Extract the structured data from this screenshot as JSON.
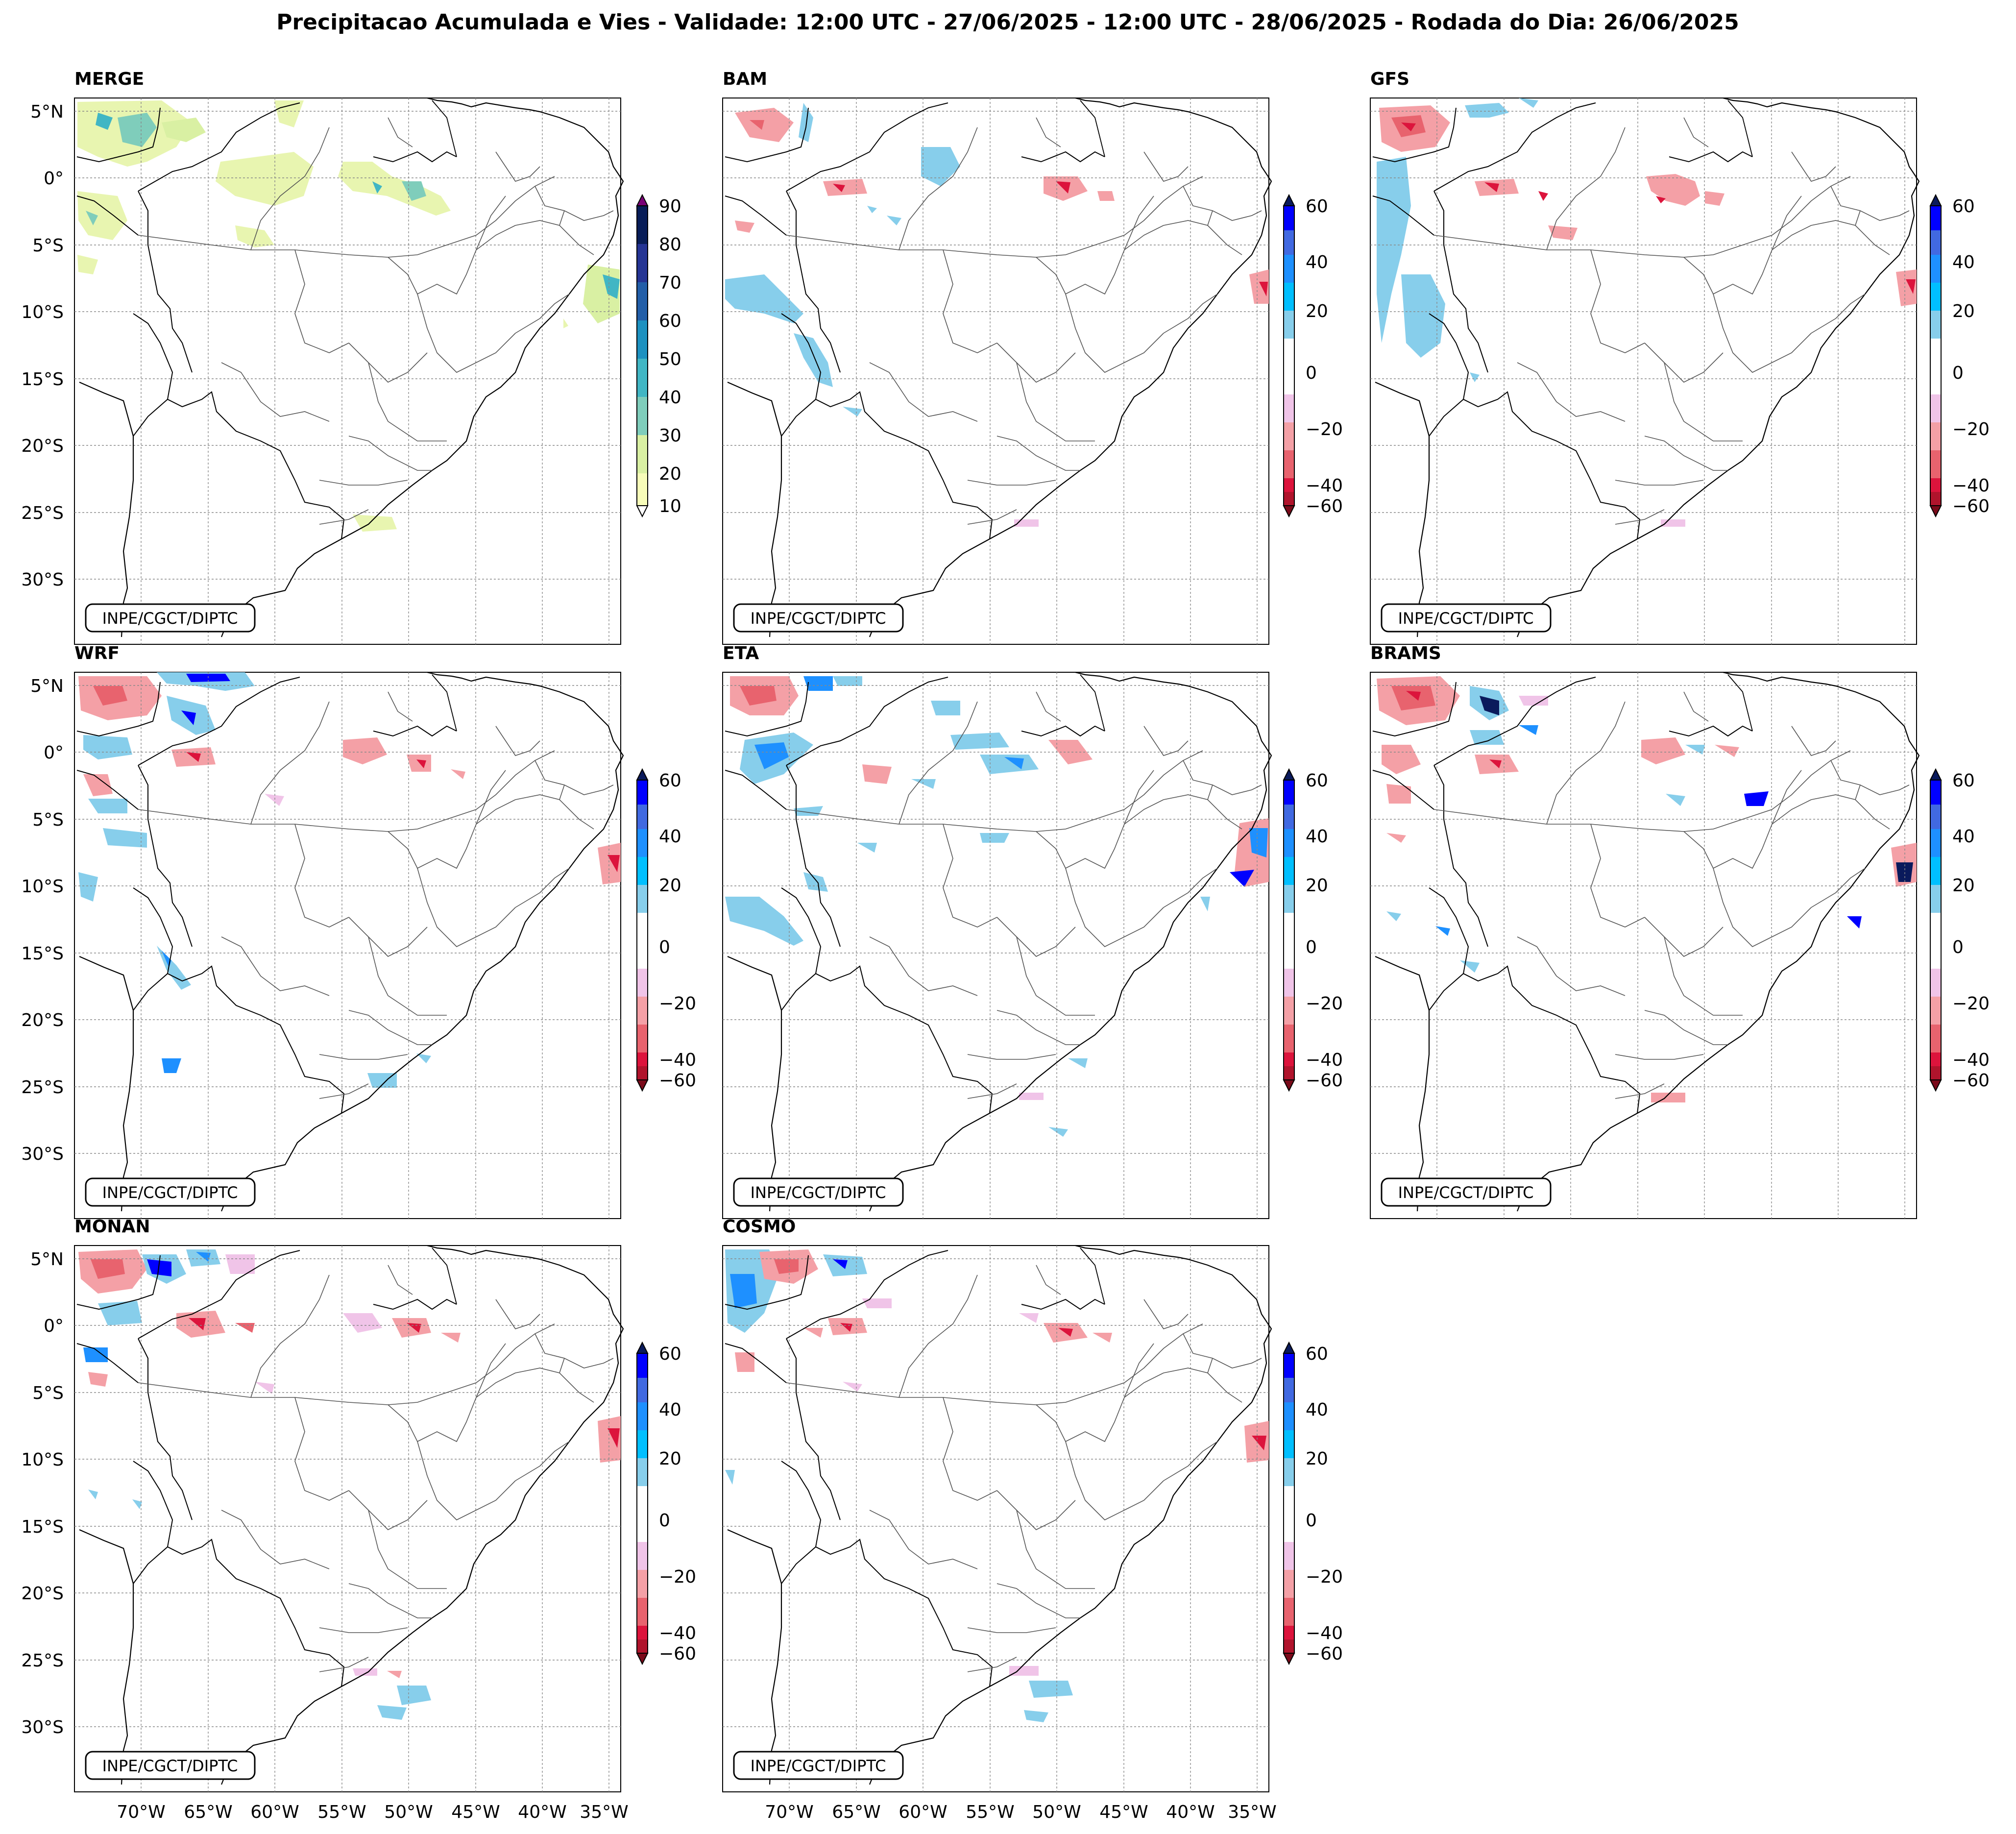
{
  "figure": {
    "title": "Precipitacao Acumulada e Vies - Validade: 12:00 UTC - 27/06/2025 - 12:00 UTC - 28/06/2025 - Rodada do Dia: 26/06/2025"
  },
  "credit": "INPE/CGCT/DIPTC",
  "lat_ticks": [
    "5°N",
    "0°",
    "5°S",
    "10°S",
    "15°S",
    "20°S",
    "25°S",
    "30°S"
  ],
  "lon_ticks": [
    "70°W",
    "65°W",
    "60°W",
    "55°W",
    "50°W",
    "45°W",
    "40°W",
    "35°W"
  ],
  "panels": [
    {
      "name": "MERGE",
      "type": "precip"
    },
    {
      "name": "BAM",
      "type": "bias"
    },
    {
      "name": "GFS",
      "type": "bias"
    },
    {
      "name": "WRF",
      "type": "bias"
    },
    {
      "name": "ETA",
      "type": "bias"
    },
    {
      "name": "BRAMS",
      "type": "bias"
    },
    {
      "name": "MONAN",
      "type": "bias"
    },
    {
      "name": "COSMO",
      "type": "bias"
    }
  ],
  "colorbars": {
    "precip": {
      "ticks": [
        "10",
        "20",
        "30",
        "40",
        "50",
        "60",
        "70",
        "80",
        "90"
      ],
      "colors": [
        "#f7fcb9",
        "#d9f0a3",
        "#7fcdbb",
        "#41b6c4",
        "#1d91c0",
        "#225ea8",
        "#253494",
        "#081d58"
      ],
      "under_color": "#ffffff",
      "over_color": "#7a0177"
    },
    "bias": {
      "ticks": [
        "60",
        "40",
        "20",
        "0",
        "−20",
        "−40",
        "−60"
      ],
      "colors_top_down": [
        "#0000ff",
        "#4169e1",
        "#1e90ff",
        "#00bfff",
        "#87ceeb",
        "#ffffff",
        "#ffffff",
        "#f0c4e8",
        "#f4a0a6",
        "#e8636e",
        "#dc143c",
        "#b0142c"
      ],
      "over_color": "#0a1a5c",
      "under_color": "#7a0a1a"
    }
  }
}
